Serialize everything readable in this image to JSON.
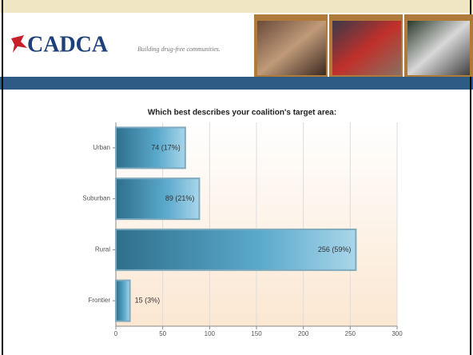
{
  "header": {
    "logo": "CADCA",
    "tagline": "Building drug-free communities."
  },
  "chart_data": {
    "type": "bar",
    "orientation": "horizontal",
    "title": "Which best describes your coalition's target area:",
    "categories": [
      "Urban",
      "Suburban",
      "Rural",
      "Frontier"
    ],
    "values": [
      74,
      89,
      256,
      15
    ],
    "value_labels": [
      "74 (17%)",
      "89 (21%)",
      "256 (59%)",
      "15 (3%)"
    ],
    "color": "#4a9cc0",
    "xlim": [
      0,
      300
    ],
    "xticks": [
      0,
      50,
      100,
      150,
      200,
      250,
      300
    ],
    "grid": true
  }
}
